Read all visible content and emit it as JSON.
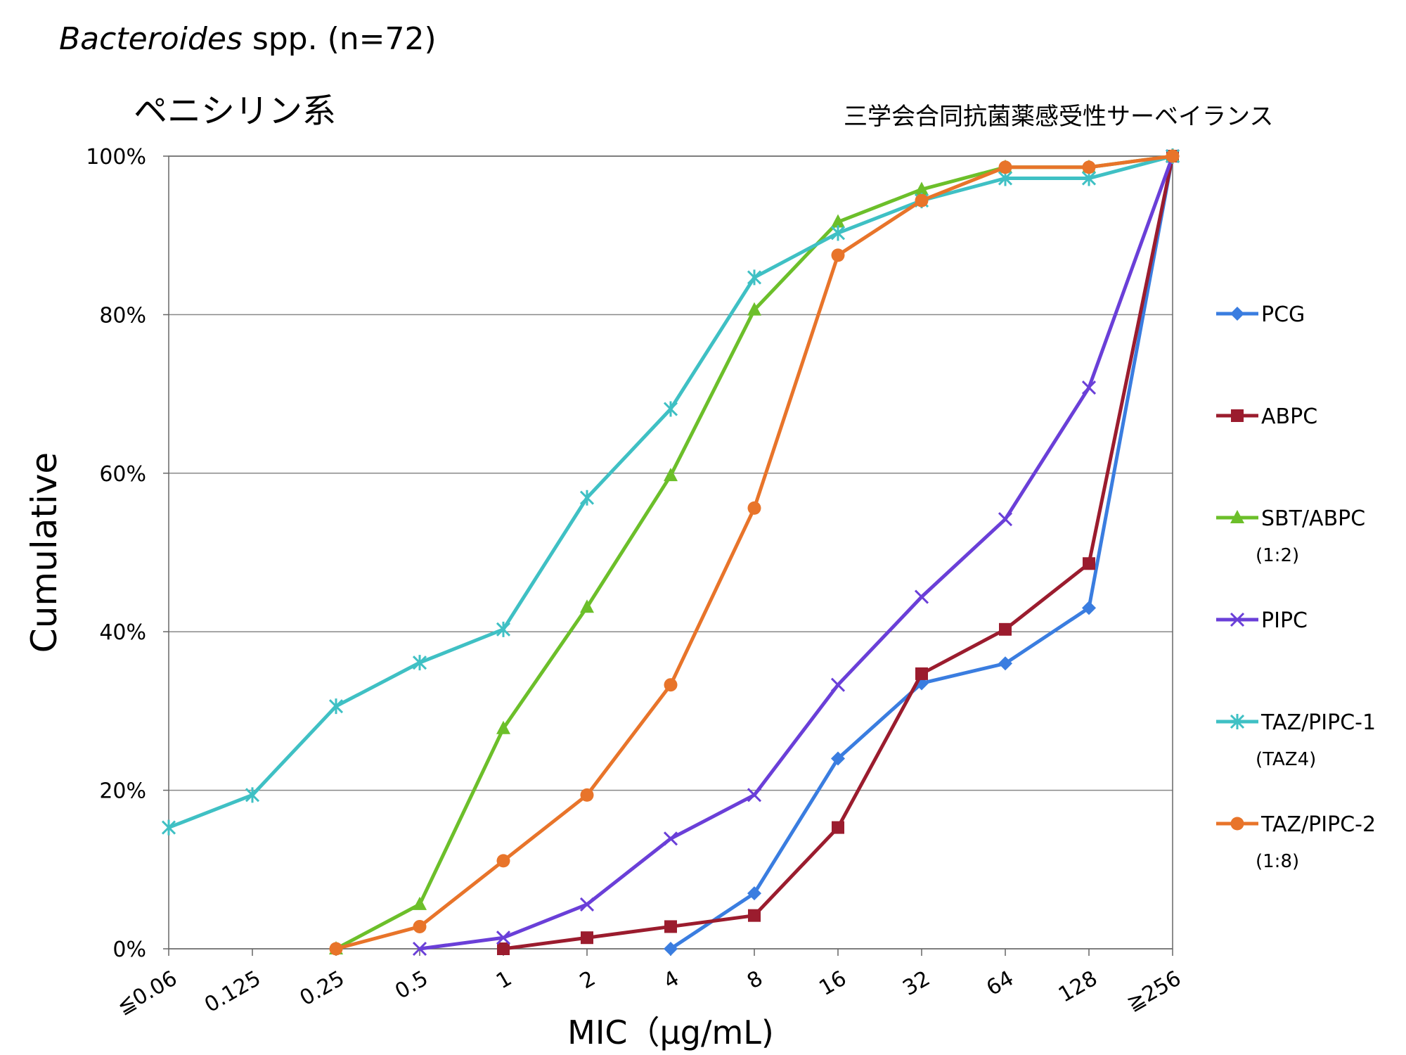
{
  "header": {
    "organism_italic": "Bacteroides",
    "organism_rest": " spp. (n=72)",
    "drug_class": "ペニシリン系",
    "source": "三学会合同抗菌薬感受性サーベイランス"
  },
  "chart_data": {
    "type": "line",
    "title": "Bacteroides spp. (n=72)",
    "subtitle": "ペニシリン系",
    "xlabel": "MIC（μg/mL)",
    "ylabel": "Cumulative",
    "categories": [
      "≦0.06",
      "0.125",
      "0.25",
      "0.5",
      "1",
      "2",
      "4",
      "8",
      "16",
      "32",
      "64",
      "128",
      "≧256"
    ],
    "ylim": [
      0,
      100
    ],
    "yticks": [
      "0%",
      "20%",
      "40%",
      "60%",
      "80%",
      "100%"
    ],
    "grid": true,
    "legend_position": "right",
    "series": [
      {
        "name": "PCG",
        "sub": "",
        "color": "#3a7de0",
        "marker": "diamond",
        "values": [
          null,
          null,
          null,
          null,
          null,
          null,
          0,
          7,
          24,
          33.5,
          36,
          43,
          100
        ]
      },
      {
        "name": "ABPC",
        "sub": "",
        "color": "#9b1c2e",
        "marker": "square",
        "values": [
          null,
          null,
          null,
          null,
          0,
          1.4,
          2.8,
          4.2,
          15.3,
          34.7,
          40.3,
          48.6,
          100
        ]
      },
      {
        "name": "SBT/ABPC",
        "sub": "(1:2)",
        "color": "#6cbf2a",
        "marker": "triangle",
        "values": [
          null,
          null,
          0,
          5.6,
          27.8,
          43.1,
          59.7,
          80.6,
          91.7,
          95.8,
          98.6,
          98.6,
          100
        ]
      },
      {
        "name": "PIPC",
        "sub": "",
        "color": "#6a3fd8",
        "marker": "x",
        "values": [
          null,
          null,
          null,
          0,
          1.4,
          5.6,
          13.9,
          19.4,
          33.3,
          44.4,
          54.2,
          70.8,
          100
        ]
      },
      {
        "name": "TAZ/PIPC-1",
        "sub": "(TAZ4)",
        "color": "#3fc0c4",
        "marker": "star",
        "values": [
          15.3,
          19.4,
          30.6,
          36.1,
          40.3,
          56.9,
          68.1,
          84.7,
          90.3,
          94.4,
          97.2,
          97.2,
          100
        ]
      },
      {
        "name": "TAZ/PIPC-2",
        "sub": "(1:8)",
        "color": "#e8742a",
        "marker": "circle",
        "values": [
          null,
          null,
          0,
          2.8,
          11.1,
          19.4,
          33.3,
          55.6,
          87.5,
          94.4,
          98.6,
          98.6,
          100
        ]
      }
    ]
  }
}
